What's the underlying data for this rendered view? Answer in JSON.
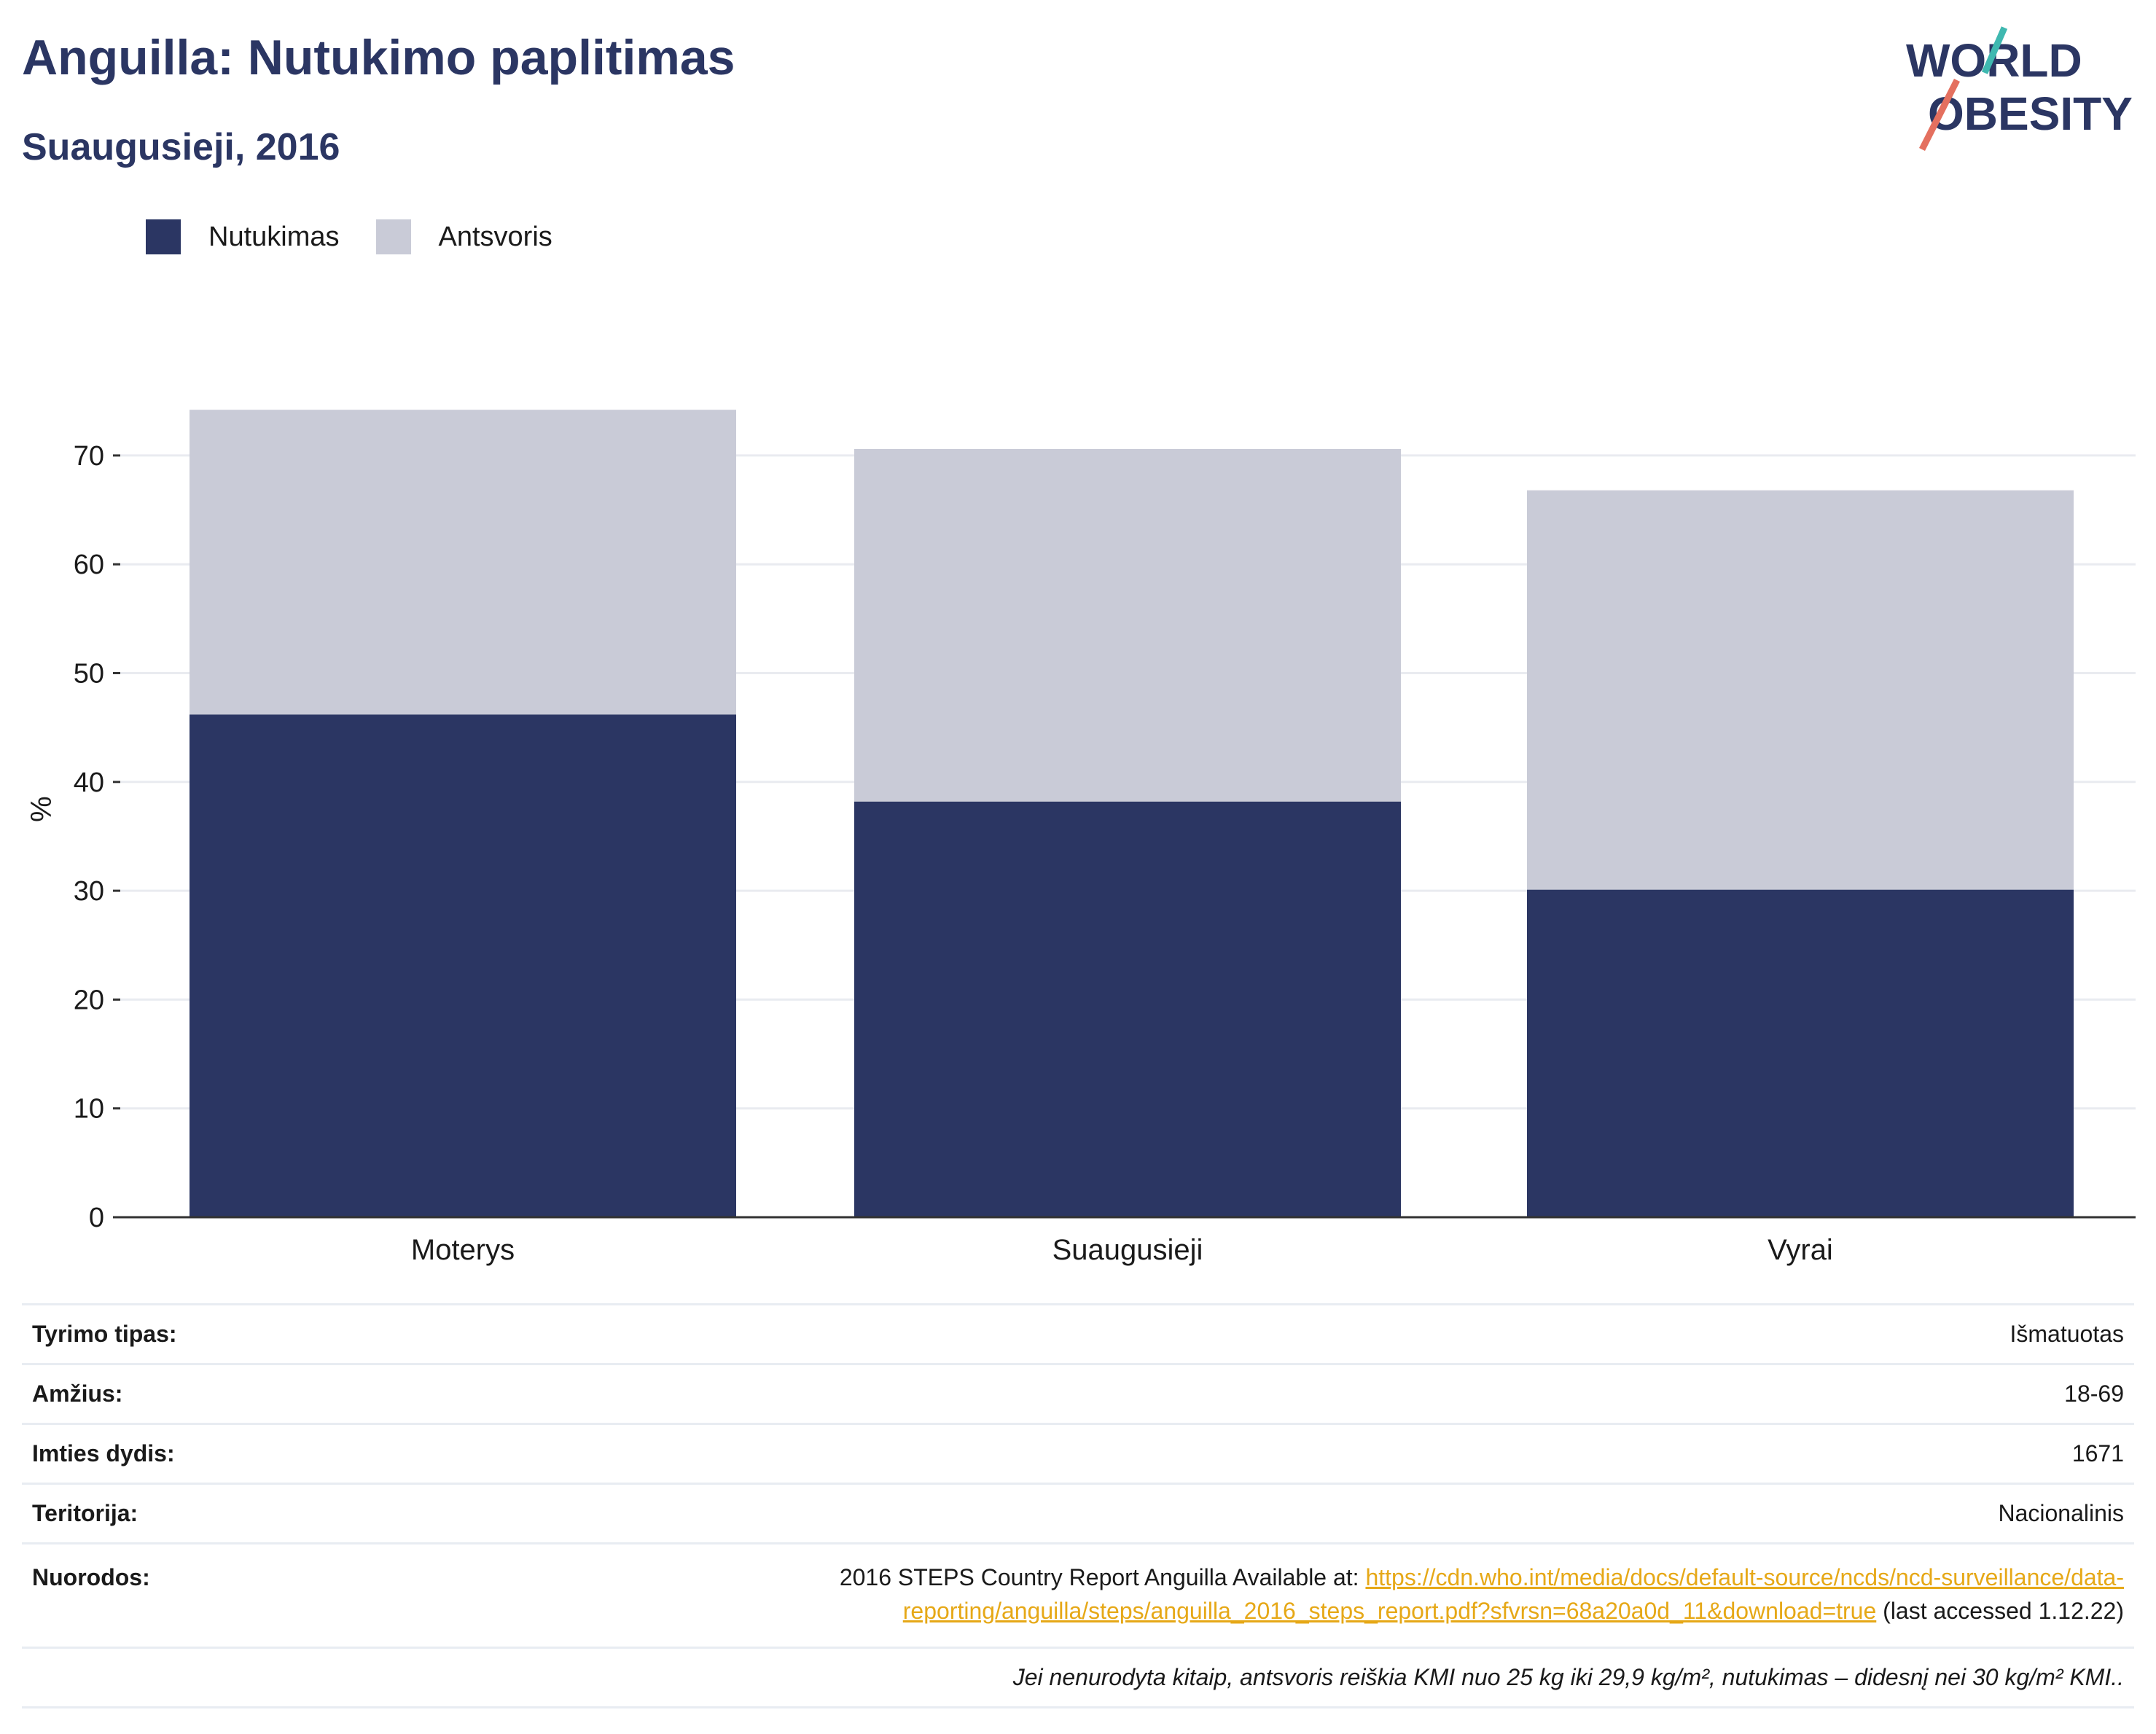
{
  "header": {
    "title": "Anguilla: Nutukimo paplitimas",
    "subtitle": "Suaugusieji, 2016",
    "logo_line1": "WORLD",
    "logo_line2": "OBESITY"
  },
  "legend": [
    {
      "label": "Nutukimas",
      "color": "#2b3663"
    },
    {
      "label": "Antsvoris",
      "color": "#c9cbd7"
    }
  ],
  "chart_data": {
    "type": "bar",
    "stacked": true,
    "categories": [
      "Moterys",
      "Suaugusieji",
      "Vyrai"
    ],
    "series": [
      {
        "name": "Nutukimas",
        "color": "#2b3663",
        "values": [
          46.2,
          38.2,
          30.1
        ]
      },
      {
        "name": "Antsvoris",
        "color": "#c9cbd7",
        "values": [
          28.0,
          32.4,
          36.7
        ]
      }
    ],
    "ylabel": "%",
    "ylim": [
      0,
      75
    ],
    "yticks": [
      0,
      10,
      20,
      30,
      40,
      50,
      60,
      70
    ],
    "grid": true,
    "legend_position": "top-left"
  },
  "info": {
    "rows": [
      {
        "key": "Tyrimo tipas:",
        "value": "Išmatuotas"
      },
      {
        "key": "Amžius:",
        "value": "18-69"
      },
      {
        "key": "Imties dydis:",
        "value": "1671"
      },
      {
        "key": "Teritorija:",
        "value": "Nacionalinis"
      }
    ],
    "refs": {
      "key": "Nuorodos:",
      "text_before": "2016 STEPS Country Report Anguilla Available at: ",
      "link_line1": "https://cdn.who.int/media/docs/default-source/ncds/ncd-surveillance/data-",
      "link_line2": "reporting/anguilla/steps/anguilla_2016_steps_report.pdf?sfvrsn=68a20a0d_11&download=true",
      "text_after": " (last accessed 1.12.22)"
    },
    "note": "Jei nenurodyta kitaip, antsvoris reiškia KMI nuo 25 kg iki 29,9 kg/m², nutukimas – didesnį nei 30 kg/m² KMI.."
  }
}
